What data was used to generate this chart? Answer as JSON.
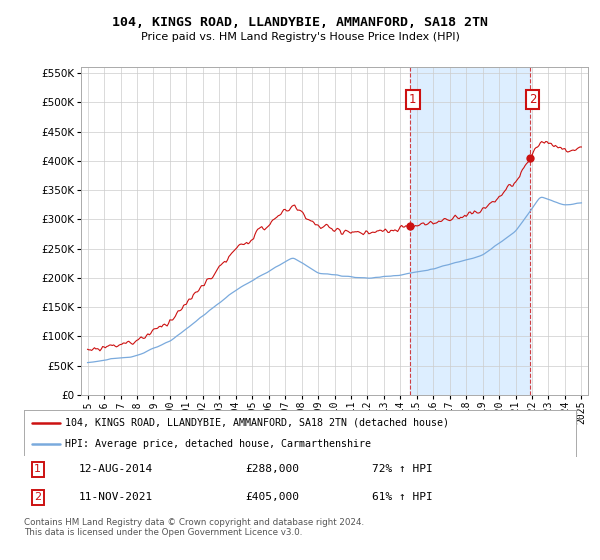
{
  "title": "104, KINGS ROAD, LLANDYBIE, AMMANFORD, SA18 2TN",
  "subtitle": "Price paid vs. HM Land Registry's House Price Index (HPI)",
  "legend_line1": "104, KINGS ROAD, LLANDYBIE, AMMANFORD, SA18 2TN (detached house)",
  "legend_line2": "HPI: Average price, detached house, Carmarthenshire",
  "footer": "Contains HM Land Registry data © Crown copyright and database right 2024.\nThis data is licensed under the Open Government Licence v3.0.",
  "hpi_color": "#7aaadd",
  "price_color": "#cc1111",
  "annotation_color": "#cc1111",
  "shade_color": "#ddeeff",
  "ylim": [
    0,
    560000
  ],
  "yticks": [
    0,
    50000,
    100000,
    150000,
    200000,
    250000,
    300000,
    350000,
    400000,
    450000,
    500000,
    550000
  ],
  "xlim_start": 1994.6,
  "xlim_end": 2025.4,
  "t_sale1": 2014.608,
  "t_sale2": 2021.872,
  "price1": 288000,
  "price2": 405000,
  "background_color": "#ffffff",
  "grid_color": "#cccccc",
  "date1": "12-AUG-2014",
  "date2": "11-NOV-2021",
  "pct1": "72% ↑ HPI",
  "pct2": "61% ↑ HPI"
}
